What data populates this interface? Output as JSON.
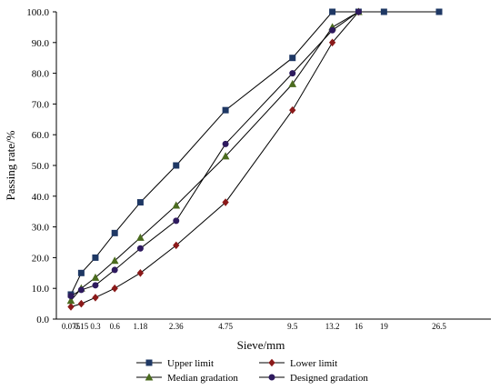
{
  "chart_data": {
    "type": "line",
    "xlabel": "Sieve/mm",
    "ylabel": "Passing rate/%",
    "x_scale": "power-0.45",
    "categories": [
      "0.075",
      "0.15",
      "0.3",
      "0.6",
      "1.18",
      "2.36",
      "4.75",
      "9.5",
      "13.2",
      "16",
      "19",
      "26.5"
    ],
    "x": [
      0.075,
      0.15,
      0.3,
      0.6,
      1.18,
      2.36,
      4.75,
      9.5,
      13.2,
      16,
      19,
      26.5
    ],
    "ylim": [
      0,
      100
    ],
    "yticks": [
      "0.0",
      "10.0",
      "20.0",
      "30.0",
      "40.0",
      "50.0",
      "60.0",
      "70.0",
      "80.0",
      "90.0",
      "100.0"
    ],
    "grid": false,
    "legend_position": "bottom",
    "series": [
      {
        "name": "Upper limit",
        "marker": "square",
        "color": "#1f3864",
        "x": [
          0.075,
          0.15,
          0.3,
          0.6,
          1.18,
          2.36,
          4.75,
          9.5,
          13.2,
          16,
          19,
          26.5
        ],
        "values": [
          8,
          15,
          20,
          28,
          38,
          50,
          68,
          85,
          100,
          100,
          100,
          100
        ]
      },
      {
        "name": "Lower limit",
        "marker": "diamond",
        "color": "#8b1a1a",
        "x": [
          0.075,
          0.15,
          0.3,
          0.6,
          1.18,
          2.36,
          4.75,
          9.5,
          13.2,
          16
        ],
        "values": [
          4,
          5,
          7,
          10,
          15,
          24,
          38,
          68,
          90,
          100
        ]
      },
      {
        "name": "Median gradation",
        "marker": "triangle",
        "color": "#4b6b1f",
        "x": [
          0.075,
          0.15,
          0.3,
          0.6,
          1.18,
          2.36,
          4.75,
          9.5,
          13.2,
          16
        ],
        "values": [
          6,
          10,
          13.5,
          19,
          26.5,
          37,
          53,
          76.5,
          95,
          100
        ]
      },
      {
        "name": "Designed gradation",
        "marker": "circle",
        "color": "#2e1a5e",
        "x": [
          0.075,
          0.15,
          0.3,
          0.6,
          1.18,
          2.36,
          4.75,
          9.5,
          13.2,
          16
        ],
        "values": [
          7.5,
          9.5,
          11,
          16,
          23,
          32,
          57,
          80,
          94,
          100
        ]
      }
    ]
  }
}
